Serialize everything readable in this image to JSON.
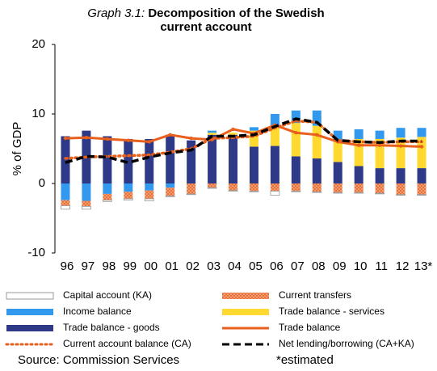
{
  "chart_data": {
    "type": "bar",
    "title_prefix": "Graph 3.1:",
    "title": "Decomposition of the Swedish current account",
    "y_label": "% of GDP",
    "categories": [
      "96",
      "97",
      "98",
      "99",
      "00",
      "01",
      "02",
      "03",
      "04",
      "05",
      "06",
      "07",
      "08",
      "09",
      "10",
      "11",
      "12",
      "13*"
    ],
    "ylim": [
      -10,
      20
    ],
    "yticks": [
      -10,
      0,
      10,
      20
    ],
    "series": [
      {
        "name": "Capital account (KA)",
        "type": "bar",
        "color": "#ffffff",
        "values": [
          -0.5,
          -0.4,
          -0.2,
          -0.2,
          -0.3,
          -0.1,
          -0.1,
          -0.1,
          -0.1,
          -0.1,
          -0.6,
          -0.1,
          -0.1,
          -0.1,
          -0.1,
          -0.1,
          -0.1,
          -0.1
        ]
      },
      {
        "name": "Current transfers",
        "type": "bar",
        "color": "#f4a582",
        "hatch": true,
        "values": [
          -0.8,
          -0.8,
          -0.9,
          -1.0,
          -1.2,
          -1.2,
          -1.5,
          -0.6,
          -1.0,
          -1.1,
          -1.1,
          -1.1,
          -1.2,
          -1.3,
          -1.3,
          -1.4,
          -1.6,
          -1.6
        ]
      },
      {
        "name": "Income balance",
        "type": "bar",
        "color": "#3399ee",
        "values": [
          -2.4,
          -2.5,
          -1.5,
          -1.2,
          -1.0,
          -0.6,
          0,
          0.3,
          0,
          0.5,
          1.7,
          1.8,
          2.2,
          1.6,
          1.4,
          1.2,
          1.4,
          1.3
        ]
      },
      {
        "name": "Trade balance - services",
        "type": "bar",
        "color": "#ffd92f",
        "values": [
          0,
          0,
          0,
          0,
          0,
          0,
          0,
          0.3,
          0.3,
          2.3,
          2.9,
          4.8,
          4.7,
          2.9,
          3.9,
          4.2,
          4.4,
          4.5
        ]
      },
      {
        "name": "Trade balance - goods",
        "type": "bar",
        "color": "#2e3a87",
        "values": [
          6.8,
          7.6,
          6.8,
          6.4,
          6.4,
          7.0,
          6.2,
          7.0,
          7.0,
          5.3,
          5.4,
          3.9,
          3.6,
          3.1,
          2.5,
          2.2,
          2.2,
          2.2
        ]
      },
      {
        "name": "Trade balance",
        "type": "line",
        "style": "solid",
        "color": "#e8601c",
        "values": [
          6.5,
          6.6,
          6.4,
          6.2,
          6.0,
          7.0,
          6.5,
          6.3,
          7.8,
          7.2,
          8.4,
          7.3,
          7.0,
          6.0,
          5.5,
          5.5,
          5.4,
          5.3
        ]
      },
      {
        "name": "Current account balance (CA)",
        "type": "line",
        "style": "dotted",
        "color": "#e8601c",
        "values": [
          3.6,
          3.8,
          3.9,
          4.0,
          4.1,
          4.5,
          5.0,
          6.5,
          6.6,
          6.8,
          8.0,
          9.0,
          8.8,
          6.2,
          6.0,
          5.9,
          6.0,
          6.0
        ]
      },
      {
        "name": "Net lending/borrowing (CA+KA)",
        "type": "line",
        "style": "dashed",
        "color": "#000000",
        "values": [
          3.0,
          3.9,
          3.8,
          3.0,
          3.8,
          4.4,
          4.8,
          6.8,
          6.8,
          7.0,
          8.2,
          9.3,
          8.8,
          6.2,
          6.0,
          5.9,
          6.1,
          6.1
        ]
      }
    ],
    "source": "Source: Commission Services",
    "note": "*estimated"
  }
}
